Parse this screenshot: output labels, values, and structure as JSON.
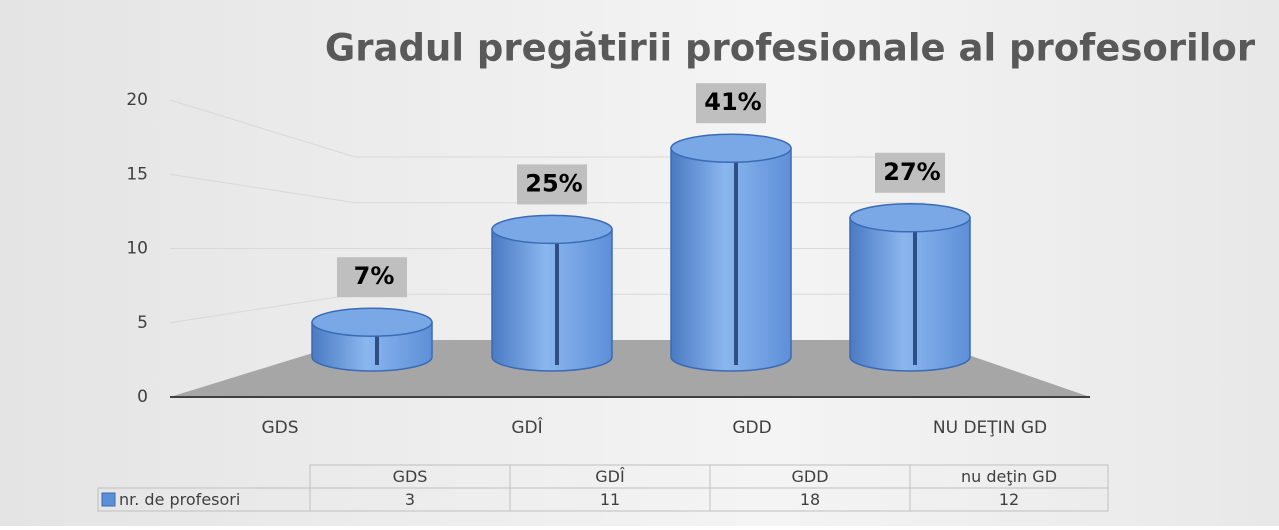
{
  "chart_data": {
    "type": "bar",
    "title": "Gradul pregătirii profesionale al profesorilor",
    "categories": [
      "GDS",
      "GDÎ",
      "GDD",
      "NU DEŢIN GD"
    ],
    "table_categories": [
      "GDS",
      "GDÎ",
      "GDD",
      "nu deţin GD"
    ],
    "series": [
      {
        "name": "nr. de profesori",
        "color": "#5b8fd6",
        "values": [
          3,
          11,
          18,
          12
        ]
      }
    ],
    "percent_labels": [
      "7%",
      "25%",
      "41%",
      "27%"
    ],
    "ylim": [
      0,
      20
    ],
    "yticks": [
      0,
      5,
      10,
      15,
      20
    ],
    "grid": true
  }
}
